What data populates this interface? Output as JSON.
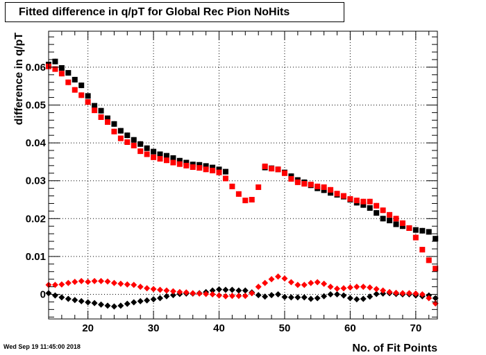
{
  "header": {
    "timestamp": "Wed Sep 19 11:45:00 2018"
  },
  "chart_data": {
    "type": "scatter",
    "title": "Fitted difference in q/pT for Global Rec Pion NoHits",
    "xlabel": "No. of Fit Points",
    "ylabel": "difference in q/pT",
    "xlim": [
      14,
      73.3
    ],
    "ylim": [
      -0.0065,
      0.0695
    ],
    "x_ticks": [
      20,
      30,
      40,
      50,
      60,
      70
    ],
    "y_ticks": [
      0,
      0.01,
      0.02,
      0.03,
      0.04,
      0.05,
      0.06
    ],
    "y_tick_labels": [
      "0",
      "0.01",
      "0.02",
      "0.03",
      "0.04",
      "0.05",
      "0.06"
    ],
    "grid": true,
    "x": [
      14,
      15,
      16,
      17,
      18,
      19,
      20,
      21,
      22,
      23,
      24,
      25,
      26,
      27,
      28,
      29,
      30,
      31,
      32,
      33,
      34,
      35,
      36,
      37,
      38,
      39,
      40,
      41,
      42,
      43,
      44,
      45,
      46,
      47,
      48,
      49,
      50,
      51,
      52,
      53,
      54,
      55,
      56,
      57,
      58,
      59,
      60,
      61,
      62,
      63,
      64,
      65,
      66,
      67,
      68,
      69,
      70,
      71,
      72,
      73
    ],
    "series": [
      {
        "marker": "square",
        "color": "#000000",
        "values": [
          0.0607,
          0.0615,
          0.0598,
          0.0585,
          0.0567,
          0.0552,
          0.0524,
          0.0498,
          0.0485,
          0.0465,
          0.045,
          0.0432,
          0.042,
          0.0408,
          0.0397,
          0.0386,
          0.0377,
          0.037,
          0.0366,
          0.036,
          0.0353,
          0.0348,
          0.0343,
          0.0342,
          0.0339,
          0.0335,
          0.033,
          0.0324,
          null,
          null,
          null,
          null,
          null,
          0.0335,
          0.0333,
          0.033,
          0.0322,
          0.0312,
          0.0302,
          0.0296,
          0.0288,
          0.028,
          0.0275,
          0.0268,
          0.0263,
          0.0258,
          0.025,
          0.0242,
          0.0236,
          0.0228,
          0.0215,
          0.02,
          0.0195,
          0.0185,
          0.018,
          0.0175,
          0.017,
          0.0168,
          0.0165,
          0.0147
        ]
      },
      {
        "marker": "square",
        "color": "#ff0000",
        "values": [
          0.0602,
          0.0595,
          0.0583,
          0.056,
          0.054,
          0.0526,
          0.0508,
          0.0486,
          0.0468,
          0.0455,
          0.043,
          0.0412,
          0.0402,
          0.0393,
          0.0378,
          0.037,
          0.0362,
          0.0358,
          0.0354,
          0.0348,
          0.0344,
          0.034,
          0.0336,
          0.0334,
          0.033,
          0.0327,
          0.0322,
          0.0306,
          0.0285,
          0.0265,
          0.0248,
          0.025,
          0.0283,
          0.0338,
          0.0332,
          0.033,
          0.032,
          0.0305,
          0.0296,
          0.0292,
          0.029,
          0.0285,
          0.0283,
          0.0276,
          0.0266,
          0.026,
          0.0252,
          0.0248,
          0.0245,
          0.0245,
          0.0234,
          0.0222,
          0.021,
          0.02,
          0.0188,
          0.0175,
          0.015,
          0.0118,
          0.009,
          0.0068
        ]
      },
      {
        "marker": "diamond",
        "color": "#000000",
        "values": [
          0.0003,
          -0.0003,
          -0.0008,
          -0.0012,
          -0.0015,
          -0.0018,
          -0.0021,
          -0.0023,
          -0.0027,
          -0.003,
          -0.0032,
          -0.003,
          -0.0025,
          -0.0021,
          -0.0018,
          -0.0016,
          -0.0013,
          -0.001,
          -0.0005,
          -0.0002,
          0.0001,
          0.0002,
          0.0002,
          0.0003,
          0.0006,
          0.001,
          0.0013,
          0.0012,
          0.0012,
          0.001,
          0.001,
          0.0005,
          -0.0002,
          -0.0006,
          -0.0002,
          0.0,
          -0.0007,
          -0.0008,
          -0.0008,
          -0.0008,
          -0.0012,
          -0.001,
          -0.0005,
          0.0,
          0.0,
          -0.0003,
          -0.001,
          -0.0013,
          -0.0012,
          -0.0006,
          0.0001,
          0.0002,
          0.0003,
          0.0001,
          0.0,
          0.0,
          -0.0003,
          -0.0005,
          -0.0003,
          -0.001
        ]
      },
      {
        "marker": "diamond",
        "color": "#ff0000",
        "values": [
          0.0025,
          0.0025,
          0.0026,
          0.003,
          0.0033,
          0.0035,
          0.0033,
          0.0035,
          0.0035,
          0.0034,
          0.003,
          0.0028,
          0.0026,
          0.0025,
          0.002,
          0.0016,
          0.0014,
          0.0012,
          0.001,
          0.0008,
          0.0006,
          0.0005,
          0.0003,
          0.0002,
          0.0001,
          0.0,
          -0.0003,
          -0.0005,
          -0.0004,
          -0.0004,
          -0.0004,
          0.0003,
          0.002,
          0.003,
          0.004,
          0.0047,
          0.0042,
          0.0032,
          0.0025,
          0.0025,
          0.003,
          0.0032,
          0.0028,
          0.002,
          0.0015,
          0.0016,
          0.0018,
          0.002,
          0.002,
          0.0018,
          0.0014,
          0.001,
          0.0006,
          0.0004,
          0.0003,
          0.0003,
          0.0002,
          0.0,
          -0.001,
          -0.0024
        ]
      }
    ]
  }
}
